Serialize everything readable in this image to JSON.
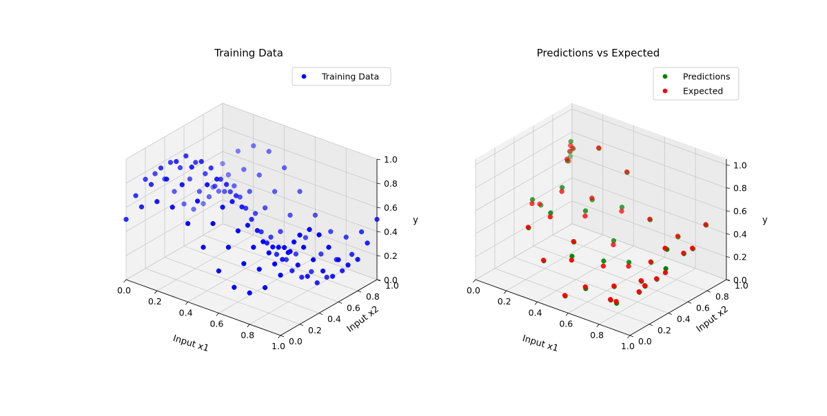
{
  "chart_data": [
    {
      "type": "scatter",
      "projection": "3d",
      "title": "Training Data",
      "xlabel": "Input x1",
      "ylabel": "Input x2",
      "zlabel": "y",
      "xlim": [
        0,
        1
      ],
      "ylim": [
        0,
        1
      ],
      "zlim": [
        0,
        1
      ],
      "xticks": [
        "0.0",
        "0.2",
        "0.4",
        "0.6",
        "0.8",
        "1.0"
      ],
      "yticks": [
        "0.0",
        "0.2",
        "0.4",
        "0.6",
        "0.8",
        "1.0"
      ],
      "zticks": [
        "0.0",
        "0.2",
        "0.4",
        "0.6",
        "0.8",
        "1.0"
      ],
      "grid": true,
      "legend_position": "upper-right",
      "series": [
        {
          "name": "Training Data",
          "color": "#0000ff",
          "surface": "y = 0.5 + 0.25*sin(2*pi*x1) + 0.25*sin(2*pi*x2)",
          "points": [
            [
              0.0,
              0.0,
              0.5
            ],
            [
              0.0,
              0.1,
              0.65
            ],
            [
              0.0,
              0.2,
              0.74
            ],
            [
              0.0,
              0.3,
              0.74
            ],
            [
              0.0,
              0.4,
              0.65
            ],
            [
              0.0,
              0.5,
              0.5
            ],
            [
              0.0,
              0.6,
              0.35
            ],
            [
              0.0,
              0.7,
              0.26
            ],
            [
              0.0,
              0.8,
              0.26
            ],
            [
              0.0,
              0.9,
              0.35
            ],
            [
              0.0,
              1.0,
              0.5
            ],
            [
              0.1,
              0.0,
              0.65
            ],
            [
              0.1,
              0.1,
              0.79
            ],
            [
              0.1,
              0.2,
              0.88
            ],
            [
              0.1,
              0.3,
              0.88
            ],
            [
              0.1,
              0.4,
              0.79
            ],
            [
              0.1,
              0.5,
              0.65
            ],
            [
              0.1,
              0.6,
              0.5
            ],
            [
              0.1,
              0.7,
              0.41
            ],
            [
              0.1,
              0.8,
              0.41
            ],
            [
              0.1,
              0.9,
              0.5
            ],
            [
              0.1,
              1.0,
              0.65
            ],
            [
              0.2,
              0.0,
              0.74
            ],
            [
              0.2,
              0.1,
              0.88
            ],
            [
              0.2,
              0.2,
              0.98
            ],
            [
              0.2,
              0.3,
              0.98
            ],
            [
              0.2,
              0.4,
              0.88
            ],
            [
              0.2,
              0.5,
              0.74
            ],
            [
              0.2,
              0.6,
              0.59
            ],
            [
              0.2,
              0.7,
              0.5
            ],
            [
              0.2,
              0.8,
              0.5
            ],
            [
              0.2,
              0.9,
              0.59
            ],
            [
              0.2,
              1.0,
              0.74
            ],
            [
              0.3,
              0.0,
              0.74
            ],
            [
              0.3,
              0.1,
              0.88
            ],
            [
              0.3,
              0.2,
              0.98
            ],
            [
              0.3,
              0.3,
              0.98
            ],
            [
              0.3,
              0.4,
              0.88
            ],
            [
              0.3,
              0.5,
              0.74
            ],
            [
              0.3,
              0.6,
              0.59
            ],
            [
              0.3,
              0.7,
              0.5
            ],
            [
              0.3,
              0.8,
              0.5
            ],
            [
              0.3,
              0.9,
              0.59
            ],
            [
              0.3,
              1.0,
              0.74
            ],
            [
              0.4,
              0.0,
              0.65
            ],
            [
              0.4,
              0.1,
              0.79
            ],
            [
              0.4,
              0.2,
              0.88
            ],
            [
              0.4,
              0.3,
              0.88
            ],
            [
              0.4,
              0.4,
              0.79
            ],
            [
              0.4,
              0.5,
              0.65
            ],
            [
              0.4,
              0.6,
              0.5
            ],
            [
              0.4,
              0.7,
              0.41
            ],
            [
              0.4,
              0.8,
              0.41
            ],
            [
              0.4,
              0.9,
              0.5
            ],
            [
              0.4,
              1.0,
              0.65
            ],
            [
              0.5,
              0.0,
              0.5
            ],
            [
              0.5,
              0.1,
              0.65
            ],
            [
              0.5,
              0.2,
              0.74
            ],
            [
              0.5,
              0.3,
              0.74
            ],
            [
              0.5,
              0.4,
              0.65
            ],
            [
              0.5,
              0.5,
              0.5
            ],
            [
              0.5,
              0.6,
              0.35
            ],
            [
              0.5,
              0.7,
              0.26
            ],
            [
              0.5,
              0.8,
              0.26
            ],
            [
              0.5,
              0.9,
              0.35
            ],
            [
              0.5,
              1.0,
              0.5
            ],
            [
              0.6,
              0.0,
              0.35
            ],
            [
              0.6,
              0.1,
              0.5
            ],
            [
              0.6,
              0.2,
              0.59
            ],
            [
              0.6,
              0.3,
              0.59
            ],
            [
              0.6,
              0.4,
              0.5
            ],
            [
              0.6,
              0.5,
              0.35
            ],
            [
              0.6,
              0.6,
              0.21
            ],
            [
              0.6,
              0.7,
              0.12
            ],
            [
              0.6,
              0.8,
              0.12
            ],
            [
              0.6,
              0.9,
              0.21
            ],
            [
              0.6,
              1.0,
              0.35
            ],
            [
              0.7,
              0.0,
              0.26
            ],
            [
              0.7,
              0.1,
              0.41
            ],
            [
              0.7,
              0.2,
              0.5
            ],
            [
              0.7,
              0.3,
              0.5
            ],
            [
              0.7,
              0.4,
              0.41
            ],
            [
              0.7,
              0.5,
              0.26
            ],
            [
              0.7,
              0.6,
              0.12
            ],
            [
              0.7,
              0.7,
              0.02
            ],
            [
              0.7,
              0.8,
              0.02
            ],
            [
              0.7,
              0.9,
              0.12
            ],
            [
              0.7,
              1.0,
              0.26
            ],
            [
              0.8,
              0.0,
              0.26
            ],
            [
              0.8,
              0.1,
              0.41
            ],
            [
              0.8,
              0.2,
              0.5
            ],
            [
              0.8,
              0.3,
              0.5
            ],
            [
              0.8,
              0.4,
              0.41
            ],
            [
              0.8,
              0.5,
              0.26
            ],
            [
              0.8,
              0.6,
              0.12
            ],
            [
              0.8,
              0.7,
              0.02
            ],
            [
              0.8,
              0.8,
              0.02
            ],
            [
              0.8,
              0.9,
              0.12
            ],
            [
              0.8,
              1.0,
              0.26
            ],
            [
              0.9,
              0.0,
              0.35
            ],
            [
              0.9,
              0.1,
              0.5
            ],
            [
              0.9,
              0.2,
              0.59
            ],
            [
              0.9,
              0.3,
              0.59
            ],
            [
              0.9,
              0.4,
              0.5
            ],
            [
              0.9,
              0.5,
              0.35
            ],
            [
              0.9,
              0.6,
              0.21
            ],
            [
              0.9,
              0.7,
              0.12
            ],
            [
              0.9,
              0.8,
              0.12
            ],
            [
              0.9,
              0.9,
              0.21
            ],
            [
              0.9,
              1.0,
              0.35
            ],
            [
              1.0,
              0.0,
              0.5
            ],
            [
              1.0,
              0.1,
              0.65
            ],
            [
              1.0,
              0.2,
              0.74
            ],
            [
              1.0,
              0.3,
              0.74
            ],
            [
              1.0,
              0.4,
              0.65
            ],
            [
              1.0,
              0.5,
              0.5
            ],
            [
              1.0,
              0.6,
              0.35
            ],
            [
              1.0,
              0.7,
              0.26
            ],
            [
              1.0,
              0.8,
              0.26
            ],
            [
              1.0,
              0.9,
              0.35
            ],
            [
              1.0,
              1.0,
              0.5
            ]
          ]
        }
      ]
    },
    {
      "type": "scatter",
      "projection": "3d",
      "title": "Predictions vs Expected",
      "xlabel": "Input x1",
      "ylabel": "Input x2",
      "zlabel": "y",
      "xlim": [
        0,
        1
      ],
      "ylim": [
        0,
        1
      ],
      "zlim": [
        0,
        1.05
      ],
      "xticks": [
        "0.0",
        "0.2",
        "0.4",
        "0.6",
        "0.8",
        "1.0"
      ],
      "yticks": [
        "0.0",
        "0.2",
        "0.4",
        "0.6",
        "0.8",
        "1.0"
      ],
      "zticks": [
        "0.0",
        "0.2",
        "0.4",
        "0.6",
        "0.8",
        "1.0"
      ],
      "grid": true,
      "legend_position": "upper-right",
      "series": [
        {
          "name": "Predictions",
          "color": "#008000",
          "points": [
            [
              0.02,
              0.95,
              0.62
            ],
            [
              0.05,
              0.9,
              0.7
            ],
            [
              0.08,
              0.55,
              0.42
            ],
            [
              0.12,
              0.82,
              0.8
            ],
            [
              0.15,
              0.35,
              0.6
            ],
            [
              0.18,
              0.7,
              0.95
            ],
            [
              0.22,
              0.6,
              0.85
            ],
            [
              0.25,
              0.15,
              0.5
            ],
            [
              0.28,
              0.45,
              0.72
            ],
            [
              0.3,
              0.8,
              0.9
            ],
            [
              0.33,
              0.25,
              0.62
            ],
            [
              0.35,
              0.65,
              0.55
            ],
            [
              0.38,
              0.1,
              0.3
            ],
            [
              0.4,
              0.5,
              0.55
            ],
            [
              0.42,
              0.9,
              0.7
            ],
            [
              0.45,
              0.3,
              0.4
            ],
            [
              0.48,
              0.75,
              0.5
            ],
            [
              0.5,
              0.2,
              0.35
            ],
            [
              0.52,
              0.6,
              0.3
            ],
            [
              0.55,
              0.05,
              0.1
            ],
            [
              0.58,
              0.4,
              0.25
            ],
            [
              0.6,
              0.85,
              0.4
            ],
            [
              0.62,
              0.15,
              0.15
            ],
            [
              0.65,
              0.55,
              0.2
            ],
            [
              0.68,
              0.35,
              0.1
            ],
            [
              0.7,
              0.7,
              0.15
            ],
            [
              0.72,
              0.25,
              0.05
            ],
            [
              0.75,
              0.9,
              0.3
            ],
            [
              0.78,
              0.45,
              0.05
            ],
            [
              0.8,
              0.6,
              0.1
            ],
            [
              0.82,
              0.15,
              0.12
            ],
            [
              0.85,
              0.8,
              0.25
            ],
            [
              0.88,
              0.35,
              0.2
            ],
            [
              0.9,
              0.95,
              0.45
            ],
            [
              0.92,
              0.5,
              0.3
            ],
            [
              0.95,
              0.2,
              0.35
            ],
            [
              0.97,
              0.7,
              0.4
            ],
            [
              0.99,
              0.4,
              0.55
            ]
          ]
        },
        {
          "name": "Expected",
          "color": "#ff0000",
          "points": [
            [
              0.03,
              0.92,
              0.6
            ],
            [
              0.06,
              0.88,
              0.72
            ],
            [
              0.09,
              0.52,
              0.45
            ],
            [
              0.13,
              0.8,
              0.82
            ],
            [
              0.16,
              0.33,
              0.58
            ],
            [
              0.19,
              0.68,
              0.93
            ],
            [
              0.23,
              0.58,
              0.88
            ],
            [
              0.26,
              0.13,
              0.52
            ],
            [
              0.29,
              0.43,
              0.7
            ],
            [
              0.31,
              0.78,
              0.92
            ],
            [
              0.34,
              0.23,
              0.6
            ],
            [
              0.36,
              0.63,
              0.58
            ],
            [
              0.39,
              0.08,
              0.32
            ],
            [
              0.41,
              0.48,
              0.52
            ],
            [
              0.43,
              0.88,
              0.72
            ],
            [
              0.46,
              0.28,
              0.42
            ],
            [
              0.49,
              0.73,
              0.48
            ],
            [
              0.51,
              0.18,
              0.33
            ],
            [
              0.53,
              0.58,
              0.28
            ],
            [
              0.56,
              0.03,
              0.12
            ],
            [
              0.59,
              0.38,
              0.22
            ],
            [
              0.61,
              0.83,
              0.42
            ],
            [
              0.63,
              0.13,
              0.18
            ],
            [
              0.66,
              0.53,
              0.18
            ],
            [
              0.69,
              0.33,
              0.12
            ],
            [
              0.71,
              0.68,
              0.17
            ],
            [
              0.73,
              0.23,
              0.07
            ],
            [
              0.76,
              0.88,
              0.32
            ],
            [
              0.79,
              0.43,
              0.07
            ],
            [
              0.81,
              0.58,
              0.12
            ],
            [
              0.83,
              0.13,
              0.15
            ],
            [
              0.86,
              0.78,
              0.27
            ],
            [
              0.89,
              0.33,
              0.22
            ],
            [
              0.91,
              0.93,
              0.47
            ],
            [
              0.93,
              0.48,
              0.28
            ],
            [
              0.96,
              0.18,
              0.37
            ],
            [
              0.98,
              0.68,
              0.42
            ],
            [
              0.99,
              0.38,
              0.57
            ]
          ]
        }
      ]
    }
  ]
}
